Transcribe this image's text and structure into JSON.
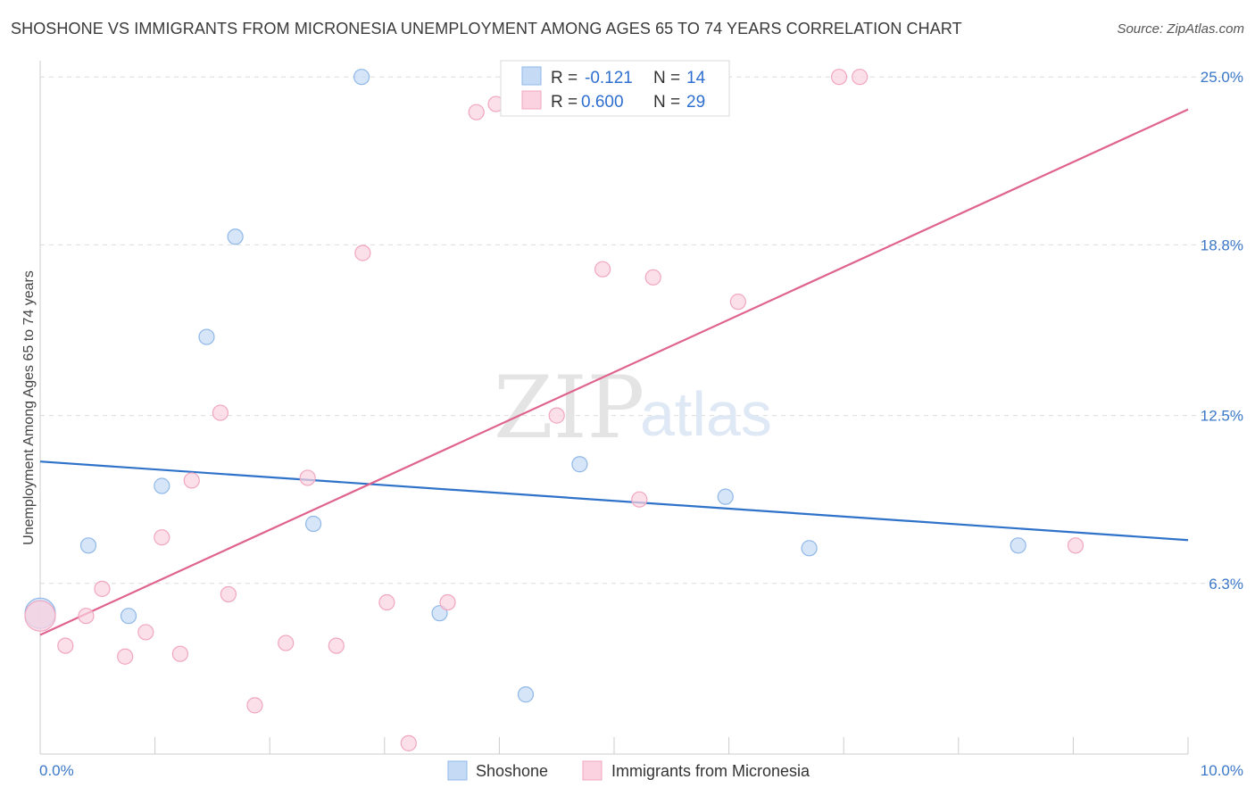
{
  "title": "SHOSHONE VS IMMIGRANTS FROM MICRONESIA UNEMPLOYMENT AMONG AGES 65 TO 74 YEARS CORRELATION CHART",
  "source": "Source: ZipAtlas.com",
  "watermark": {
    "zip": "ZIP",
    "atlas": "atlas"
  },
  "legend": {
    "rows": [
      {
        "r_label": "R =",
        "r_value": "-0.121",
        "n_label": "N =",
        "n_value": "14"
      },
      {
        "r_label": "R =",
        "r_value": "0.600",
        "n_label": "N =",
        "n_value": "29"
      }
    ]
  },
  "chart_data": {
    "type": "scatter",
    "title": "SHOSHONE VS IMMIGRANTS FROM MICRONESIA UNEMPLOYMENT AMONG AGES 65 TO 74 YEARS CORRELATION CHART",
    "xlabel": "",
    "ylabel": "Unemployment Among Ages 65 to 74 years",
    "xlim": [
      0,
      10
    ],
    "ylim": [
      0,
      25.6
    ],
    "x_tick_labels": {
      "left": "0.0%",
      "right": "10.0%"
    },
    "y_ticks": [
      {
        "value": 6.3,
        "label": "6.3%"
      },
      {
        "value": 12.5,
        "label": "12.5%"
      },
      {
        "value": 18.8,
        "label": "18.8%"
      },
      {
        "value": 25.0,
        "label": "25.0%"
      }
    ],
    "series": [
      {
        "name": "Shoshone",
        "color": "#8fb8e8",
        "fill": "#c5daf5",
        "line_color": "#2f72c9",
        "trend": {
          "x": [
            0,
            10
          ],
          "y": [
            10.8,
            7.9
          ]
        },
        "points": [
          {
            "x": 0.0,
            "y": 5.2,
            "big": true
          },
          {
            "x": 0.42,
            "y": 7.7
          },
          {
            "x": 0.77,
            "y": 5.1
          },
          {
            "x": 1.06,
            "y": 9.9
          },
          {
            "x": 1.45,
            "y": 15.4
          },
          {
            "x": 1.7,
            "y": 19.1
          },
          {
            "x": 2.38,
            "y": 8.5
          },
          {
            "x": 2.8,
            "y": 25.0
          },
          {
            "x": 3.48,
            "y": 5.2
          },
          {
            "x": 4.23,
            "y": 2.2
          },
          {
            "x": 4.7,
            "y": 10.7
          },
          {
            "x": 5.97,
            "y": 9.5
          },
          {
            "x": 6.7,
            "y": 7.6
          },
          {
            "x": 8.52,
            "y": 7.7
          }
        ]
      },
      {
        "name": "Immigrants from Micronesia",
        "color": "#f0a6bf",
        "fill": "#fbd3e0",
        "line_color": "#e0638f",
        "trend": {
          "x": [
            0,
            10
          ],
          "y": [
            4.4,
            23.8
          ]
        },
        "points": [
          {
            "x": 0.0,
            "y": 5.1,
            "big": true
          },
          {
            "x": 0.22,
            "y": 4.0
          },
          {
            "x": 0.4,
            "y": 5.1
          },
          {
            "x": 0.54,
            "y": 6.1
          },
          {
            "x": 0.74,
            "y": 3.6
          },
          {
            "x": 0.92,
            "y": 4.5
          },
          {
            "x": 1.06,
            "y": 8.0
          },
          {
            "x": 1.22,
            "y": 3.7
          },
          {
            "x": 1.32,
            "y": 10.1
          },
          {
            "x": 1.57,
            "y": 12.6
          },
          {
            "x": 1.64,
            "y": 5.9
          },
          {
            "x": 1.87,
            "y": 1.8
          },
          {
            "x": 2.14,
            "y": 4.1
          },
          {
            "x": 2.33,
            "y": 10.2
          },
          {
            "x": 2.58,
            "y": 4.0
          },
          {
            "x": 2.81,
            "y": 18.5
          },
          {
            "x": 3.02,
            "y": 5.6
          },
          {
            "x": 3.21,
            "y": 0.4
          },
          {
            "x": 3.55,
            "y": 5.6
          },
          {
            "x": 3.8,
            "y": 23.7
          },
          {
            "x": 3.97,
            "y": 24.0
          },
          {
            "x": 4.5,
            "y": 12.5
          },
          {
            "x": 4.9,
            "y": 17.9
          },
          {
            "x": 5.22,
            "y": 9.4
          },
          {
            "x": 5.34,
            "y": 17.6
          },
          {
            "x": 6.08,
            "y": 16.7
          },
          {
            "x": 6.96,
            "y": 25.0
          },
          {
            "x": 7.14,
            "y": 25.0
          },
          {
            "x": 9.02,
            "y": 7.7
          }
        ]
      }
    ]
  }
}
